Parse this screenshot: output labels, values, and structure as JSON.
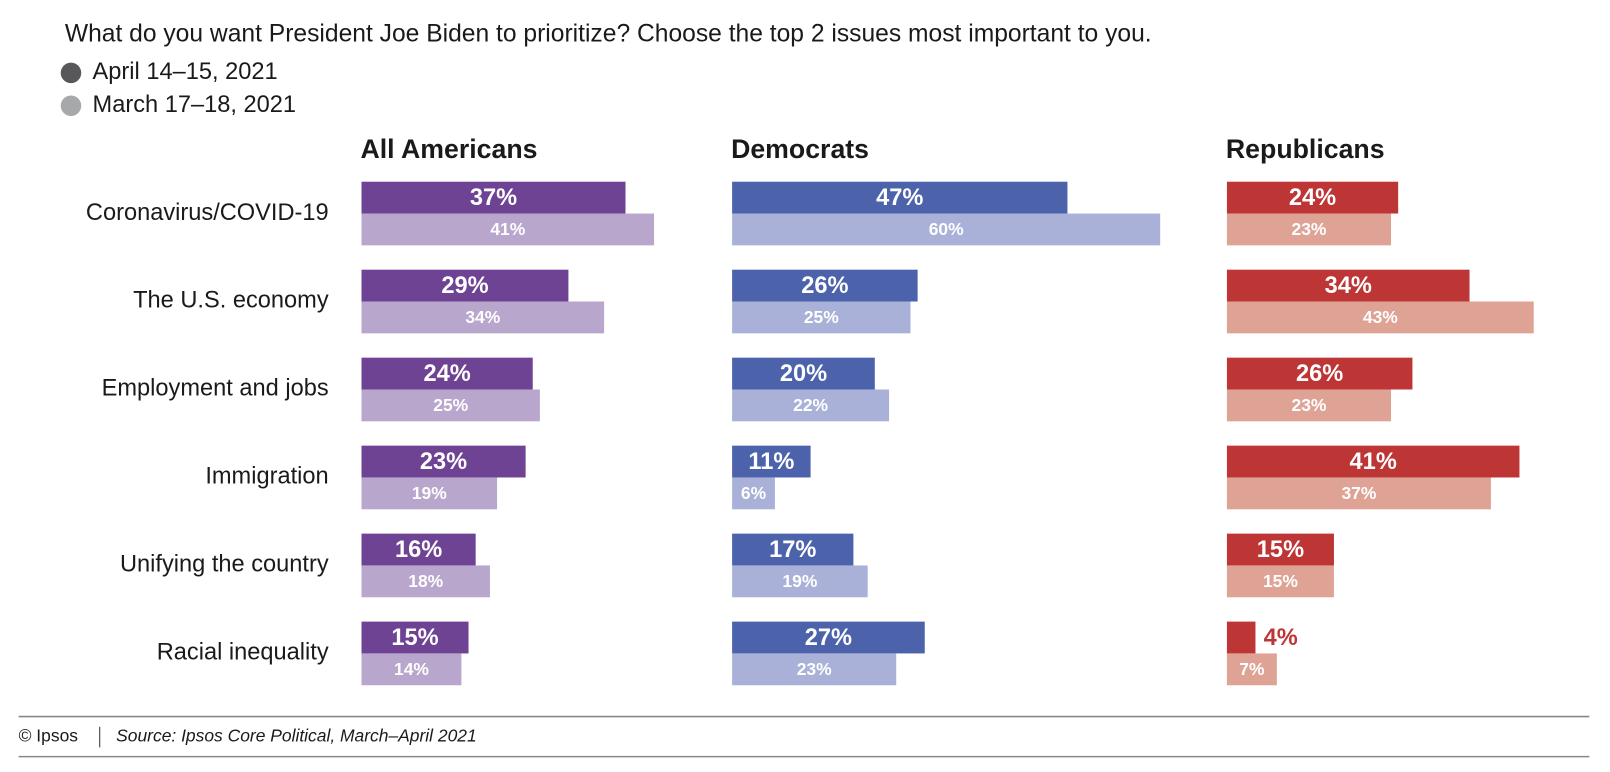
{
  "title": "What do you want President Joe Biden to prioritize? Choose the top 2 issues most important to you.",
  "legend": [
    {
      "label": "April 14–15, 2021",
      "color": "#58585a"
    },
    {
      "label": "March 17–18, 2021",
      "color": "#a7a8aa"
    }
  ],
  "chart_data": [
    {
      "type": "bar",
      "title": "All Americans",
      "categories": [
        "Coronavirus/COVID-19",
        "The U.S. economy",
        "Employment and jobs",
        "Immigration",
        "Unifying the country",
        "Racial inequality"
      ],
      "series": [
        {
          "color": "#6e4394",
          "values": [
            37,
            29,
            24,
            23,
            16,
            15
          ],
          "value_labels": [
            "37%",
            "29%",
            "24%",
            "23%",
            "16%",
            "15%"
          ]
        },
        {
          "color": "#b8a6cc",
          "values": [
            41,
            34,
            25,
            19,
            18,
            14
          ],
          "value_labels": [
            "41%",
            "34%",
            "25%",
            "19%",
            "18%",
            "14%"
          ]
        }
      ]
    },
    {
      "type": "bar",
      "title": "Democrats",
      "series": [
        {
          "color": "#4c63ab",
          "values": [
            47,
            26,
            20,
            11,
            17,
            27
          ],
          "value_labels": [
            "47%",
            "26%",
            "20%",
            "11%",
            "17%",
            "27%"
          ]
        },
        {
          "color": "#a9b1d8",
          "values": [
            60,
            25,
            22,
            6,
            19,
            23
          ],
          "value_labels": [
            "60%",
            "25%",
            "22%",
            "6%",
            "19%",
            "23%"
          ]
        }
      ]
    },
    {
      "type": "bar",
      "title": "Republicans",
      "series": [
        {
          "color": "#bd3535",
          "values": [
            24,
            34,
            26,
            41,
            15,
            4
          ],
          "value_labels": [
            "24%",
            "34%",
            "26%",
            "41%",
            "15%",
            "4%"
          ]
        },
        {
          "color": "#dfa396",
          "values": [
            23,
            43,
            23,
            37,
            15,
            7
          ],
          "value_labels": [
            "23%",
            "43%",
            "23%",
            "37%",
            "15%",
            "7%"
          ]
        }
      ]
    }
  ],
  "footer": {
    "credit": "© Ipsos",
    "source": "Source: Ipsos Core Political, March–April 2021"
  }
}
